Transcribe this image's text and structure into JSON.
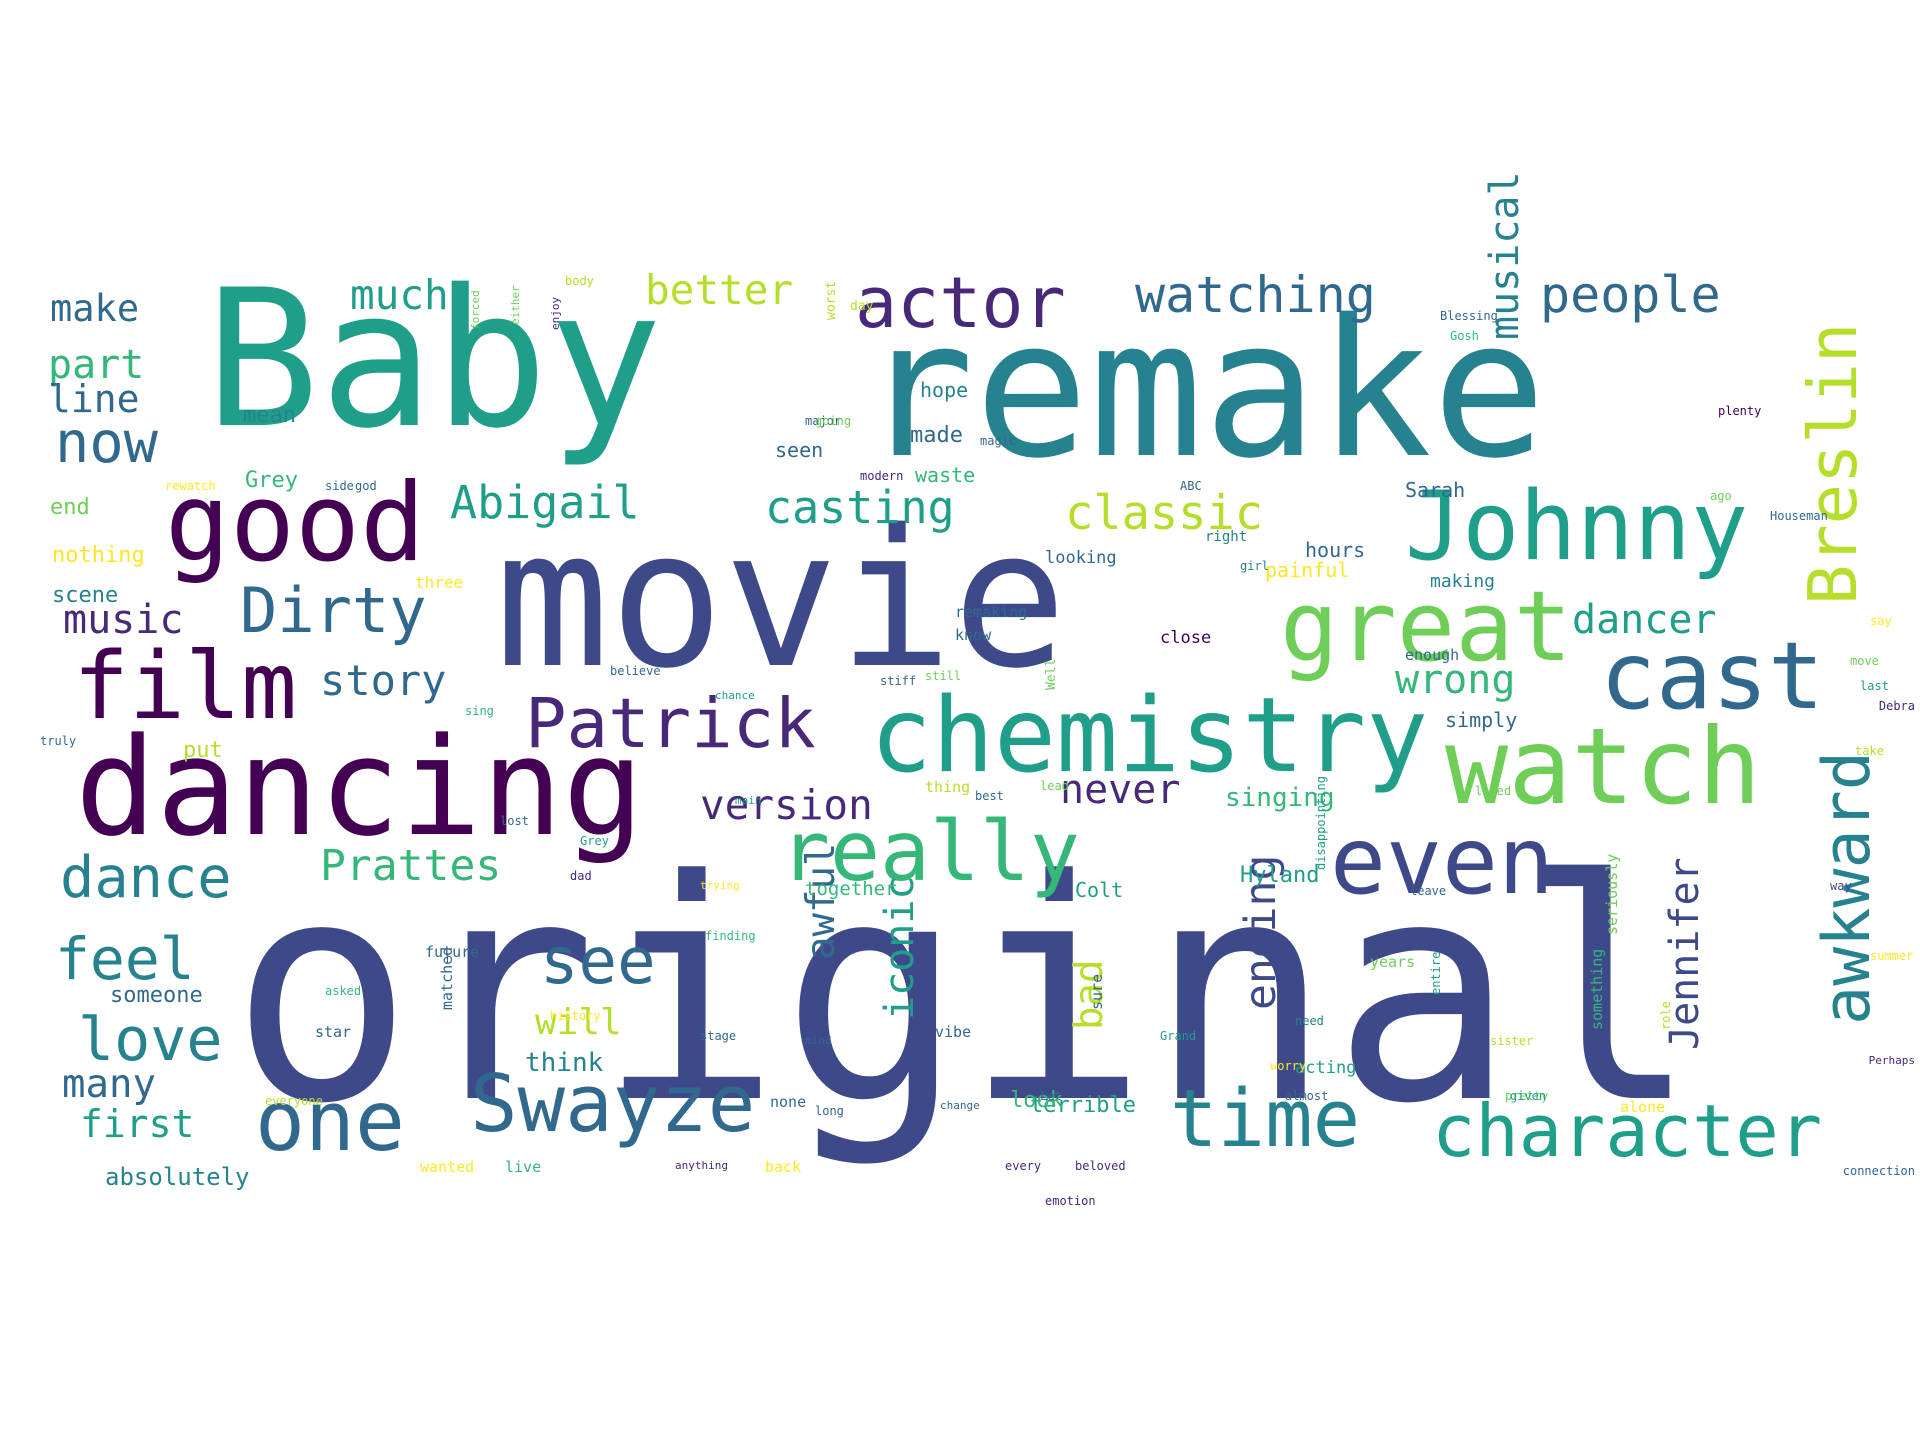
{
  "palette": {
    "p1": "#440154",
    "p2": "#482878",
    "p3": "#3e4989",
    "p4": "#31688e",
    "p5": "#26828e",
    "p6": "#1f9e89",
    "p7": "#35b779",
    "p8": "#6ece58",
    "p9": "#b5de2b",
    "p10": "#fde725"
  },
  "words": [
    {
      "text": "original",
      "c": "p3"
    },
    {
      "text": "Baby",
      "c": "p6"
    },
    {
      "text": "remake",
      "c": "p5"
    },
    {
      "text": "movie",
      "c": "p3"
    },
    {
      "text": "dancing",
      "c": "p1"
    },
    {
      "text": "good",
      "c": "p1"
    },
    {
      "text": "film",
      "c": "p1"
    },
    {
      "text": "chemistry",
      "c": "p6"
    },
    {
      "text": "watch",
      "c": "p8"
    },
    {
      "text": "Johnny",
      "c": "p6"
    },
    {
      "text": "great",
      "c": "p8"
    },
    {
      "text": "cast",
      "c": "p4"
    },
    {
      "text": "even",
      "c": "p3"
    },
    {
      "text": "really",
      "c": "p7"
    },
    {
      "text": "one",
      "c": "p4"
    },
    {
      "text": "Swayze",
      "c": "p4"
    },
    {
      "text": "time",
      "c": "p5"
    },
    {
      "text": "character",
      "c": "p6"
    },
    {
      "text": "actor",
      "c": "p2"
    },
    {
      "text": "Patrick",
      "c": "p2"
    },
    {
      "text": "Breslin",
      "c": "p9"
    },
    {
      "text": "awkward",
      "c": "p5"
    },
    {
      "text": "Dirty",
      "c": "p4"
    },
    {
      "text": "see",
      "c": "p4"
    },
    {
      "text": "dance",
      "c": "p5"
    },
    {
      "text": "feel",
      "c": "p5"
    },
    {
      "text": "love",
      "c": "p5"
    },
    {
      "text": "now",
      "c": "p4"
    },
    {
      "text": "watching",
      "c": "p4"
    },
    {
      "text": "people",
      "c": "p4"
    },
    {
      "text": "classic",
      "c": "p9"
    },
    {
      "text": "Abigail",
      "c": "p6"
    },
    {
      "text": "casting",
      "c": "p6"
    },
    {
      "text": "Prattes",
      "c": "p7"
    },
    {
      "text": "version",
      "c": "p2"
    },
    {
      "text": "better",
      "c": "p9"
    },
    {
      "text": "much",
      "c": "p6"
    },
    {
      "text": "story",
      "c": "p4"
    },
    {
      "text": "music",
      "c": "p2"
    },
    {
      "text": "dancer",
      "c": "p6"
    },
    {
      "text": "wrong",
      "c": "p7"
    },
    {
      "text": "never",
      "c": "p2"
    },
    {
      "text": "ending",
      "c": "p3"
    },
    {
      "text": "Jennifer",
      "c": "p3"
    },
    {
      "text": "musical",
      "c": "p5"
    },
    {
      "text": "iconic",
      "c": "p6"
    },
    {
      "text": "awful",
      "c": "p4"
    },
    {
      "text": "bad",
      "c": "p9"
    },
    {
      "text": "will",
      "c": "p9"
    },
    {
      "text": "make",
      "c": "p4"
    },
    {
      "text": "part",
      "c": "p7"
    },
    {
      "text": "line",
      "c": "p4"
    },
    {
      "text": "many",
      "c": "p4"
    },
    {
      "text": "first",
      "c": "p6"
    },
    {
      "text": "think",
      "c": "p5"
    },
    {
      "text": "singing",
      "c": "p7"
    },
    {
      "text": "terrible",
      "c": "p6"
    },
    {
      "text": "Hyland",
      "c": "p6"
    },
    {
      "text": "look",
      "c": "p7"
    },
    {
      "text": "put",
      "c": "p9"
    },
    {
      "text": "absolutely",
      "c": "p5"
    },
    {
      "text": "someone",
      "c": "p4"
    },
    {
      "text": "nothing",
      "c": "p10"
    },
    {
      "text": "scene",
      "c": "p5"
    },
    {
      "text": "end",
      "c": "p8"
    },
    {
      "text": "Grey",
      "c": "p7"
    },
    {
      "text": "mean",
      "c": "p5"
    },
    {
      "text": "hope",
      "c": "p5"
    },
    {
      "text": "made",
      "c": "p4"
    },
    {
      "text": "waste",
      "c": "p7"
    },
    {
      "text": "seen",
      "c": "p4"
    },
    {
      "text": "Sarah",
      "c": "p4"
    },
    {
      "text": "hours",
      "c": "p4"
    },
    {
      "text": "painful",
      "c": "p10"
    },
    {
      "text": "making",
      "c": "p5"
    },
    {
      "text": "looking",
      "c": "p4"
    },
    {
      "text": "close",
      "c": "p1"
    },
    {
      "text": "remaking",
      "c": "p4"
    },
    {
      "text": "know",
      "c": "p4"
    },
    {
      "text": "enough",
      "c": "p4"
    },
    {
      "text": "simply",
      "c": "p4"
    },
    {
      "text": "Colt",
      "c": "p6"
    },
    {
      "text": "together",
      "c": "p7"
    },
    {
      "text": "future",
      "c": "p4"
    },
    {
      "text": "star",
      "c": "p4"
    },
    {
      "text": "vibe",
      "c": "p4"
    },
    {
      "text": "sure",
      "c": "p4"
    },
    {
      "text": "acting",
      "c": "p6"
    },
    {
      "text": "years",
      "c": "p8"
    },
    {
      "text": "alone",
      "c": "p10"
    },
    {
      "text": "back",
      "c": "p10"
    },
    {
      "text": "none",
      "c": "p4"
    },
    {
      "text": "wanted",
      "c": "p10"
    },
    {
      "text": "live",
      "c": "p7"
    },
    {
      "text": "matched",
      "c": "p4"
    },
    {
      "text": "seriously",
      "c": "p8"
    },
    {
      "text": "something",
      "c": "p7"
    },
    {
      "text": "thing",
      "c": "p9"
    },
    {
      "text": "best",
      "c": "p4"
    },
    {
      "text": "lead",
      "c": "p8"
    },
    {
      "text": "Well",
      "c": "p8"
    },
    {
      "text": "day",
      "c": "p9"
    },
    {
      "text": "worst",
      "c": "p9"
    },
    {
      "text": "major",
      "c": "p4"
    },
    {
      "text": "modern",
      "c": "p2"
    },
    {
      "text": "three",
      "c": "p10"
    },
    {
      "text": "right",
      "c": "p5"
    },
    {
      "text": "girl",
      "c": "p5"
    },
    {
      "text": "believe",
      "c": "p4"
    },
    {
      "text": "ABC",
      "c": "p4"
    },
    {
      "text": "plenty",
      "c": "p1"
    },
    {
      "text": "Debra",
      "c": "p2"
    },
    {
      "text": "summer",
      "c": "p10"
    },
    {
      "text": "Perhaps",
      "c": "p2"
    },
    {
      "text": "connection",
      "c": "p4"
    },
    {
      "text": "emotion",
      "c": "p2"
    },
    {
      "text": "every",
      "c": "p2"
    },
    {
      "text": "beloved",
      "c": "p2"
    },
    {
      "text": "anything",
      "c": "p2"
    },
    {
      "text": "change",
      "c": "p4"
    },
    {
      "text": "everyone",
      "c": "p9"
    },
    {
      "text": "long",
      "c": "p4"
    },
    {
      "text": "stiff",
      "c": "p4"
    },
    {
      "text": "still",
      "c": "p8"
    },
    {
      "text": "main",
      "c": "p6"
    },
    {
      "text": "chance",
      "c": "p6"
    },
    {
      "text": "trying",
      "c": "p10"
    },
    {
      "text": "finding",
      "c": "p7"
    },
    {
      "text": "history",
      "c": "p10"
    },
    {
      "text": "truly",
      "c": "p4"
    },
    {
      "text": "stage",
      "c": "p4"
    },
    {
      "text": "mind",
      "c": "p4"
    },
    {
      "text": "asked",
      "c": "p7"
    },
    {
      "text": "need",
      "c": "p5"
    },
    {
      "text": "almost",
      "c": "p4"
    },
    {
      "text": "pretty",
      "c": "p8"
    },
    {
      "text": "sister",
      "c": "p9"
    },
    {
      "text": "given",
      "c": "p6"
    },
    {
      "text": "entire",
      "c": "p6"
    },
    {
      "text": "role",
      "c": "p9"
    },
    {
      "text": "move",
      "c": "p8"
    },
    {
      "text": "last",
      "c": "p6"
    },
    {
      "text": "take",
      "c": "p9"
    },
    {
      "text": "way",
      "c": "p3"
    },
    {
      "text": "ago",
      "c": "p8"
    },
    {
      "text": "Houseman",
      "c": "p4"
    },
    {
      "text": "magic",
      "c": "p4"
    },
    {
      "text": "going",
      "c": "p8"
    },
    {
      "text": "rewatch",
      "c": "p10"
    },
    {
      "text": "side",
      "c": "p4"
    },
    {
      "text": "god",
      "c": "p4"
    },
    {
      "text": "sing",
      "c": "p7"
    },
    {
      "text": "leave",
      "c": "p4"
    },
    {
      "text": "Blessing",
      "c": "p4"
    },
    {
      "text": "body",
      "c": "p9"
    },
    {
      "text": "either",
      "c": "p8"
    },
    {
      "text": "forced",
      "c": "p8"
    },
    {
      "text": "enjoy",
      "c": "p2"
    },
    {
      "text": "loved",
      "c": "p8"
    },
    {
      "text": "disappointing",
      "c": "p6"
    },
    {
      "text": "Grey",
      "c": "p6"
    },
    {
      "text": "Grand",
      "c": "p6"
    },
    {
      "text": "worry",
      "c": "p10"
    },
    {
      "text": "say",
      "c": "p10"
    },
    {
      "text": "lost",
      "c": "p4"
    },
    {
      "text": "dad",
      "c": "p2"
    },
    {
      "text": "Let",
      "c": "p4"
    },
    {
      "text": "Gosh",
      "c": "p7"
    },
    {
      "text": "leading",
      "c": "p4"
    }
  ]
}
